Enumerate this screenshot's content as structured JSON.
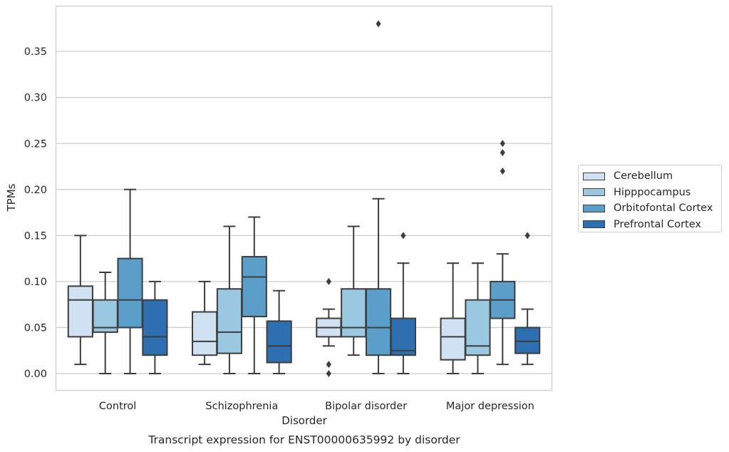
{
  "chart_data": {
    "type": "box",
    "title": "Transcript expression for ENST00000635992 by disorder",
    "xlabel": "Disorder",
    "ylabel": "TPMs",
    "ylim": [
      -0.018,
      0.398
    ],
    "yticks": [
      "0.00",
      "0.05",
      "0.10",
      "0.15",
      "0.20",
      "0.25",
      "0.30",
      "0.35"
    ],
    "ytick_values": [
      0.0,
      0.05,
      0.1,
      0.15,
      0.2,
      0.25,
      0.3,
      0.35
    ],
    "categories": [
      "Control",
      "Schizophrenia",
      "Bipolar disorder",
      "Major depression"
    ],
    "grid": "horizontal",
    "legend_position": "right",
    "series": [
      {
        "name": "Cerebellum",
        "color": "#cfe1f2",
        "boxes": [
          {
            "whislo": 0.01,
            "q1": 0.04,
            "med": 0.08,
            "q3": 0.095,
            "whishi": 0.15,
            "fliers": []
          },
          {
            "whislo": 0.01,
            "q1": 0.02,
            "med": 0.035,
            "q3": 0.067,
            "whishi": 0.1,
            "fliers": []
          },
          {
            "whislo": 0.03,
            "q1": 0.04,
            "med": 0.05,
            "q3": 0.06,
            "whishi": 0.07,
            "fliers": [
              0.1,
              0.01,
              0.0
            ]
          },
          {
            "whislo": 0.0,
            "q1": 0.015,
            "med": 0.04,
            "q3": 0.06,
            "whishi": 0.12,
            "fliers": []
          }
        ]
      },
      {
        "name": "Hipppocampus",
        "color": "#9ac8e0",
        "boxes": [
          {
            "whislo": 0.0,
            "q1": 0.045,
            "med": 0.05,
            "q3": 0.08,
            "whishi": 0.11,
            "fliers": []
          },
          {
            "whislo": 0.0,
            "q1": 0.022,
            "med": 0.045,
            "q3": 0.092,
            "whishi": 0.16,
            "fliers": []
          },
          {
            "whislo": 0.02,
            "q1": 0.04,
            "med": 0.05,
            "q3": 0.092,
            "whishi": 0.16,
            "fliers": []
          },
          {
            "whislo": 0.0,
            "q1": 0.02,
            "med": 0.03,
            "q3": 0.08,
            "whishi": 0.12,
            "fliers": []
          }
        ]
      },
      {
        "name": "Orbitofontal Cortex",
        "color": "#5a9ec9",
        "boxes": [
          {
            "whislo": 0.0,
            "q1": 0.05,
            "med": 0.08,
            "q3": 0.125,
            "whishi": 0.2,
            "fliers": []
          },
          {
            "whislo": 0.0,
            "q1": 0.062,
            "med": 0.105,
            "q3": 0.127,
            "whishi": 0.17,
            "fliers": []
          },
          {
            "whislo": 0.0,
            "q1": 0.02,
            "med": 0.05,
            "q3": 0.092,
            "whishi": 0.19,
            "fliers": [
              0.38
            ]
          },
          {
            "whislo": 0.01,
            "q1": 0.06,
            "med": 0.08,
            "q3": 0.1,
            "whishi": 0.13,
            "fliers": [
              0.22,
              0.25,
              0.24
            ]
          }
        ]
      },
      {
        "name": "Prefrontal Cortex",
        "color": "#2d6fb0",
        "boxes": [
          {
            "whislo": 0.0,
            "q1": 0.02,
            "med": 0.04,
            "q3": 0.08,
            "whishi": 0.1,
            "fliers": []
          },
          {
            "whislo": 0.0,
            "q1": 0.012,
            "med": 0.03,
            "q3": 0.057,
            "whishi": 0.09,
            "fliers": []
          },
          {
            "whislo": 0.0,
            "q1": 0.02,
            "med": 0.025,
            "q3": 0.06,
            "whishi": 0.12,
            "fliers": [
              0.15
            ]
          },
          {
            "whislo": 0.01,
            "q1": 0.022,
            "med": 0.035,
            "q3": 0.05,
            "whishi": 0.07,
            "fliers": [
              0.15
            ]
          }
        ]
      }
    ]
  }
}
